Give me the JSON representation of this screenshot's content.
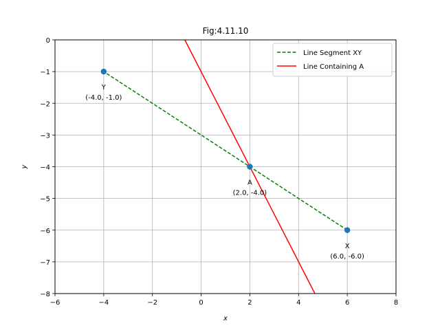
{
  "chart_data": {
    "type": "line",
    "title": "Fig:4.11.10",
    "xlabel": "x",
    "ylabel": "y",
    "xlim": [
      -6,
      8
    ],
    "ylim": [
      -8,
      0
    ],
    "xticks": [
      -6,
      -4,
      -2,
      0,
      2,
      4,
      6,
      8
    ],
    "yticks": [
      0,
      -1,
      -2,
      -3,
      -4,
      -5,
      -6,
      -7,
      -8
    ],
    "xtick_labels": [
      "−6",
      "−4",
      "−2",
      "0",
      "2",
      "4",
      "6",
      "8"
    ],
    "ytick_labels": [
      "0",
      "−1",
      "−2",
      "−3",
      "−4",
      "−5",
      "−6",
      "−7",
      "−8"
    ],
    "grid": true,
    "legend_position": "top-right",
    "series": [
      {
        "name": "Line Segment XY",
        "color": "#008000",
        "style": "dashed",
        "points": [
          [
            6,
            -6
          ],
          [
            -4,
            -1
          ]
        ]
      },
      {
        "name": "Line Containing A",
        "color": "#ff0000",
        "style": "solid",
        "points": [
          [
            -0.67,
            0
          ],
          [
            4.67,
            -8
          ]
        ]
      }
    ],
    "points": [
      {
        "name": "Y",
        "x": -4,
        "y": -1,
        "coord": "(-4.0, -1.0)"
      },
      {
        "name": "A",
        "x": 2,
        "y": -4,
        "coord": "(2.0, -4.0)"
      },
      {
        "name": "X",
        "x": 6,
        "y": -6,
        "coord": "(6.0, -6.0)"
      }
    ],
    "point_color": "#1f77b4"
  }
}
